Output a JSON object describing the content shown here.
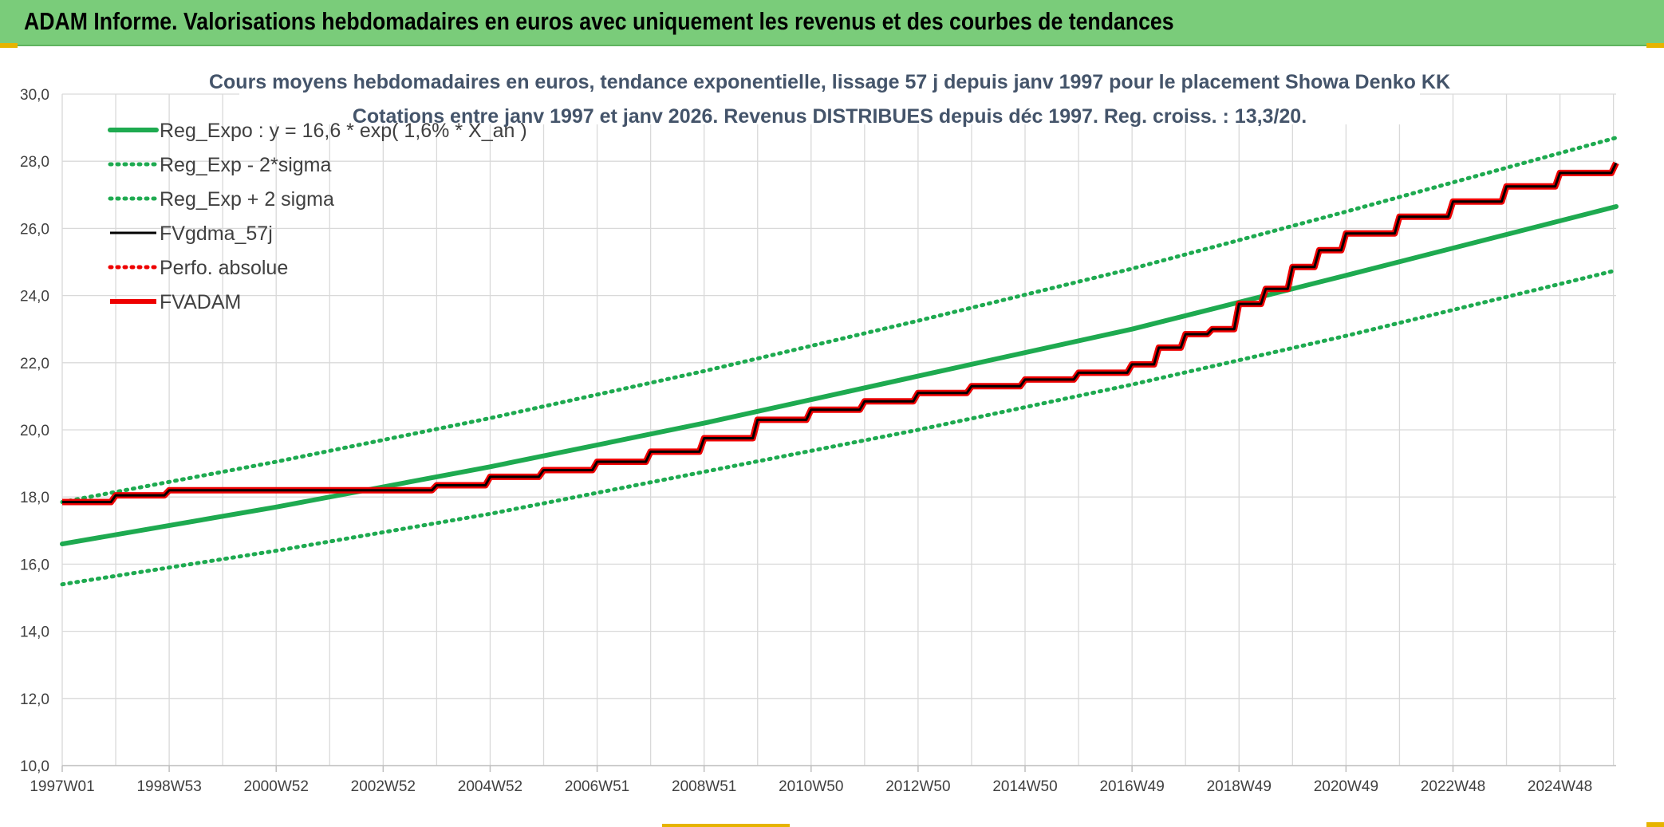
{
  "banner": {
    "title": "ADAM Informe. Valorisations hebdomadaires en euros avec uniquement les revenus et des courbes de tendances"
  },
  "colors": {
    "banner_bg": "#7acc7a",
    "reg_expo": "#1eaa50",
    "fvgdma": "#000000",
    "fvadam": "#ee0000",
    "perfo": "#ee0000",
    "title_text": "#44546a",
    "grid": "#d9d9d9"
  },
  "chart_data": {
    "type": "line",
    "title": "Cours moyens hebdomadaires en euros, tendance exponentielle, lissage 57 j depuis janv 1997 pour le placement Showa Denko KK",
    "subtitle": "Cotations entre janv 1997 et janv 2026. Revenus DISTRIBUES depuis déc 1997. Reg. croiss. : 13,3/20.",
    "xlabel": "",
    "ylabel": "",
    "x_range": [
      1997.0,
      2026.05
    ],
    "ylim": [
      10,
      30
    ],
    "y_ticks": [
      "10,0",
      "12,0",
      "14,0",
      "16,0",
      "18,0",
      "20,0",
      "22,0",
      "24,0",
      "26,0",
      "28,0",
      "30,0"
    ],
    "x_ticks": [
      {
        "label": "1997W01",
        "x": 1997.0
      },
      {
        "label": "1998W53",
        "x": 1999.0
      },
      {
        "label": "2000W52",
        "x": 2001.0
      },
      {
        "label": "2002W52",
        "x": 2003.0
      },
      {
        "label": "2004W52",
        "x": 2005.0
      },
      {
        "label": "2006W51",
        "x": 2007.0
      },
      {
        "label": "2008W51",
        "x": 2009.0
      },
      {
        "label": "2010W50",
        "x": 2011.0
      },
      {
        "label": "2012W50",
        "x": 2013.0
      },
      {
        "label": "2014W50",
        "x": 2015.0
      },
      {
        "label": "2016W49",
        "x": 2017.0
      },
      {
        "label": "2018W49",
        "x": 2019.0
      },
      {
        "label": "2020W49",
        "x": 2021.0
      },
      {
        "label": "2022W48",
        "x": 2023.0
      },
      {
        "label": "2024W48",
        "x": 2025.0
      }
    ],
    "grid": true,
    "legend_position": "top-left",
    "series": [
      {
        "name": "Reg_Expo : y = 16,6 * exp( 1,6% *  X_an )",
        "style": "solid",
        "color": "#1eaa50",
        "x": [
          1997.0,
          2001.0,
          2005.0,
          2009.0,
          2013.0,
          2017.0,
          2021.0,
          2026.05
        ],
        "y": [
          16.6,
          17.7,
          18.9,
          20.2,
          21.6,
          23.0,
          24.6,
          26.65
        ]
      },
      {
        "name": "Reg_Exp - 2*sigma",
        "style": "dotted",
        "color": "#1eaa50",
        "x": [
          1997.0,
          2001.0,
          2005.0,
          2009.0,
          2013.0,
          2017.0,
          2021.0,
          2026.05
        ],
        "y": [
          15.4,
          16.4,
          17.5,
          18.75,
          20.0,
          21.35,
          22.8,
          24.75
        ]
      },
      {
        "name": "Reg_Exp + 2 sigma",
        "style": "dotted",
        "color": "#1eaa50",
        "x": [
          1997.0,
          2001.0,
          2005.0,
          2009.0,
          2013.0,
          2017.0,
          2021.0,
          2026.05
        ],
        "y": [
          17.85,
          19.05,
          20.35,
          21.75,
          23.25,
          24.8,
          26.5,
          28.7
        ]
      },
      {
        "name": "FVgdma_57j",
        "style": "solid-thin",
        "color": "#000000",
        "x": [
          1997.0,
          1998.0,
          1999.0,
          2003.0,
          2004.0,
          2005.0,
          2006.0,
          2007.0,
          2008.0,
          2009.0,
          2010.0,
          2011.0,
          2012.0,
          2013.0,
          2014.0,
          2015.0,
          2016.0,
          2017.0,
          2017.5,
          2018.0,
          2018.5,
          2019.0,
          2019.5,
          2020.0,
          2020.5,
          2021.0,
          2022.0,
          2023.0,
          2024.0,
          2025.0,
          2026.05
        ],
        "y": [
          17.85,
          18.05,
          18.2,
          18.2,
          18.35,
          18.6,
          18.8,
          19.05,
          19.35,
          19.75,
          20.3,
          20.6,
          20.85,
          21.1,
          21.3,
          21.5,
          21.7,
          21.95,
          22.45,
          22.85,
          23.0,
          23.75,
          24.2,
          24.85,
          25.35,
          25.85,
          26.35,
          26.8,
          27.25,
          27.65,
          27.95
        ]
      },
      {
        "name": "Perfo. absolue",
        "style": "dotted",
        "color": "#ee0000",
        "x": [],
        "y": []
      },
      {
        "name": "FVADAM",
        "style": "solid-thick",
        "color": "#ee0000",
        "x": [
          1997.0,
          1998.0,
          1999.0,
          2003.0,
          2004.0,
          2005.0,
          2006.0,
          2007.0,
          2008.0,
          2009.0,
          2010.0,
          2011.0,
          2012.0,
          2013.0,
          2014.0,
          2015.0,
          2016.0,
          2017.0,
          2017.5,
          2018.0,
          2018.5,
          2019.0,
          2019.5,
          2020.0,
          2020.5,
          2021.0,
          2022.0,
          2023.0,
          2024.0,
          2025.0,
          2026.05
        ],
        "y": [
          17.85,
          18.05,
          18.2,
          18.2,
          18.35,
          18.6,
          18.8,
          19.05,
          19.35,
          19.75,
          20.3,
          20.6,
          20.85,
          21.1,
          21.3,
          21.5,
          21.7,
          21.95,
          22.45,
          22.85,
          23.0,
          23.75,
          24.2,
          24.85,
          25.35,
          25.85,
          26.35,
          26.8,
          27.25,
          27.65,
          27.95
        ]
      }
    ]
  }
}
